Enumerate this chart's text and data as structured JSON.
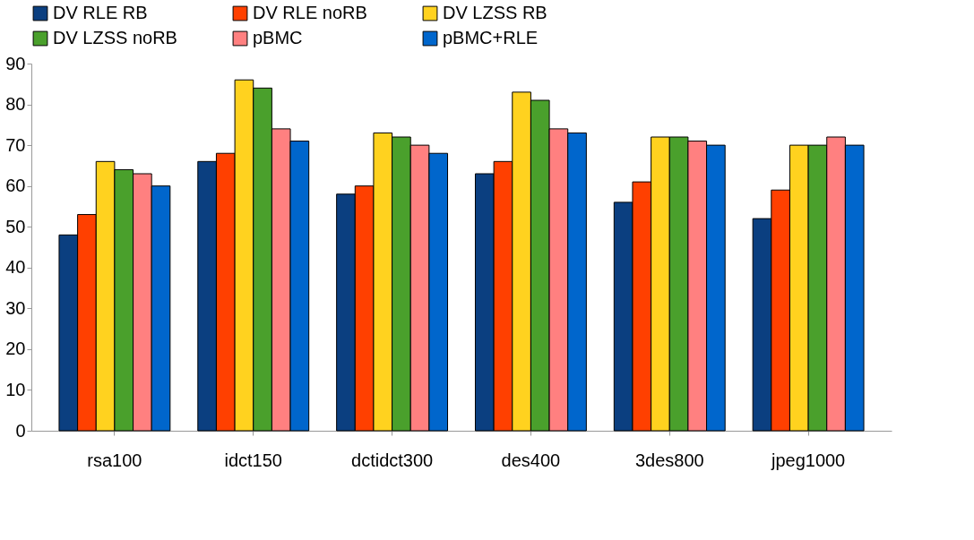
{
  "chart_data": {
    "type": "bar",
    "categories": [
      "rsa100",
      "idct150",
      "dctidct300",
      "des400",
      "3des800",
      "jpeg1000"
    ],
    "series": [
      {
        "name": "DV RLE RB",
        "color": "#0b3f80",
        "values": [
          48,
          66,
          58,
          63,
          56,
          52
        ]
      },
      {
        "name": "DV RLE noRB",
        "color": "#ff4000",
        "values": [
          53,
          68,
          60,
          66,
          61,
          59
        ]
      },
      {
        "name": "DV LZSS RB",
        "color": "#ffd21f",
        "values": [
          66,
          86,
          73,
          83,
          72,
          70
        ]
      },
      {
        "name": "DV LZSS noRB",
        "color": "#4aa02c",
        "values": [
          64,
          84,
          72,
          81,
          72,
          70
        ]
      },
      {
        "name": "pBMC",
        "color": "#ff8080",
        "values": [
          63,
          74,
          70,
          74,
          71,
          72
        ]
      },
      {
        "name": "pBMC+RLE",
        "color": "#0066cc",
        "values": [
          60,
          71,
          68,
          73,
          70,
          70
        ]
      }
    ],
    "ylim": [
      0,
      90
    ],
    "yticks": [
      0,
      10,
      20,
      30,
      40,
      50,
      60,
      70,
      80,
      90
    ],
    "grid": false,
    "legend": "top"
  }
}
